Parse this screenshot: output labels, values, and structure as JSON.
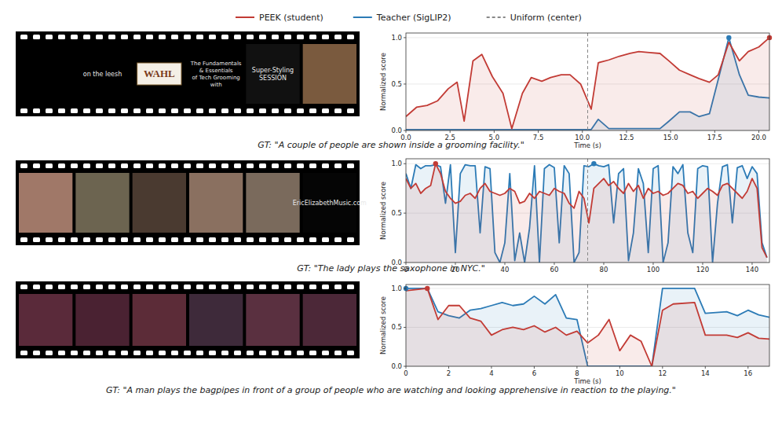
{
  "chart_data": [
    {
      "type": "line",
      "caption": "GT: \"A couple of people are shown inside a grooming facility.\"",
      "x_label": "Time (s)",
      "y_label": "Normalized score",
      "x": [
        0,
        0.6,
        1.2,
        1.8,
        2.4,
        2.9,
        3.3,
        3.8,
        4.3,
        4.9,
        5.5,
        6.0,
        6.6,
        7.1,
        7.7,
        8.2,
        8.8,
        9.3,
        9.9,
        10.5,
        10.9,
        11.5,
        12.1,
        12.7,
        13.2,
        13.8,
        14.4,
        14.9,
        15.5,
        16.1,
        16.6,
        17.2,
        17.7,
        18.3,
        18.9,
        19.4,
        20.0,
        20.6
      ],
      "series": [
        {
          "name": "PEEK (student)",
          "color": "#c23b35",
          "values": [
            0.15,
            0.25,
            0.27,
            0.32,
            0.45,
            0.52,
            0.1,
            0.75,
            0.82,
            0.58,
            0.4,
            0.02,
            0.4,
            0.57,
            0.53,
            0.57,
            0.6,
            0.6,
            0.5,
            0.23,
            0.73,
            0.76,
            0.8,
            0.83,
            0.85,
            0.84,
            0.83,
            0.75,
            0.65,
            0.6,
            0.56,
            0.52,
            0.6,
            0.95,
            0.75,
            0.85,
            0.9,
            1.0
          ]
        },
        {
          "name": "Teacher (SigLIP2)",
          "color": "#2c7bb6",
          "values": [
            0.01,
            0.01,
            0.01,
            0.01,
            0.01,
            0.01,
            0.01,
            0.01,
            0.01,
            0.01,
            0.01,
            0.01,
            0.01,
            0.01,
            0.01,
            0.01,
            0.01,
            0.01,
            0.01,
            0.01,
            0.12,
            0.02,
            0.02,
            0.02,
            0.02,
            0.02,
            0.02,
            0.1,
            0.2,
            0.2,
            0.15,
            0.18,
            0.55,
            1.0,
            0.6,
            0.38,
            0.36,
            0.35
          ]
        }
      ],
      "reference": {
        "name": "Uniform (center)",
        "color": "#888888",
        "line_style": "dashed",
        "x": 10.3
      },
      "xlim": [
        0,
        20.6
      ],
      "xticks": [
        {
          "value": 0,
          "label": "0.0"
        },
        {
          "value": 2.5,
          "label": "2.5"
        },
        {
          "value": 5,
          "label": "5.0"
        },
        {
          "value": 7.5,
          "label": "7.5"
        },
        {
          "value": 10,
          "label": "10.0"
        },
        {
          "value": 12.5,
          "label": "12.5"
        },
        {
          "value": 15,
          "label": "15.0"
        },
        {
          "value": 17.5,
          "label": "17.5"
        },
        {
          "value": 20,
          "label": "20.0"
        }
      ],
      "ylim": [
        0,
        1.05
      ],
      "yticks": [
        {
          "value": 0,
          "label": "0.0"
        },
        {
          "value": 0.5,
          "label": "0.5"
        },
        {
          "value": 1,
          "label": "1.0"
        }
      ],
      "grid": true
    },
    {
      "type": "line",
      "caption": "GT: \"The lady plays the saxophone in NYC.\"",
      "y_label": "Normalized score",
      "x": [
        0,
        2,
        4,
        6,
        8,
        10,
        12,
        14,
        16,
        18,
        20,
        22,
        24,
        26,
        28,
        30,
        32,
        34,
        36,
        38,
        40,
        42,
        44,
        46,
        48,
        50,
        52,
        54,
        56,
        58,
        60,
        62,
        64,
        66,
        68,
        70,
        72,
        74,
        76,
        78,
        80,
        82,
        84,
        86,
        88,
        90,
        92,
        94,
        96,
        98,
        100,
        102,
        104,
        106,
        108,
        110,
        112,
        114,
        116,
        118,
        120,
        122,
        124,
        126,
        128,
        130,
        132,
        134,
        136,
        138,
        140,
        142,
        144,
        146
      ],
      "series": [
        {
          "color": "#c23b35",
          "values": [
            0.85,
            0.75,
            0.8,
            0.7,
            0.75,
            0.78,
            1.0,
            0.9,
            0.72,
            0.65,
            0.6,
            0.62,
            0.68,
            0.7,
            0.65,
            0.75,
            0.8,
            0.72,
            0.7,
            0.68,
            0.7,
            0.75,
            0.72,
            0.6,
            0.62,
            0.7,
            0.65,
            0.72,
            0.7,
            0.68,
            0.75,
            0.72,
            0.7,
            0.6,
            0.55,
            0.72,
            0.65,
            0.4,
            0.75,
            0.8,
            0.85,
            0.78,
            0.82,
            0.75,
            0.7,
            0.8,
            0.72,
            0.78,
            0.65,
            0.75,
            0.7,
            0.72,
            0.68,
            0.7,
            0.75,
            0.8,
            0.78,
            0.7,
            0.72,
            0.65,
            0.7,
            0.75,
            0.72,
            0.68,
            0.78,
            0.8,
            0.75,
            0.7,
            0.65,
            0.72,
            0.85,
            0.75,
            0.15,
            0.05
          ]
        },
        {
          "color": "#2c7bb6",
          "values": [
            0.9,
            0.75,
            0.99,
            0.95,
            0.98,
            0.98,
            0.99,
            0.97,
            0.6,
            0.99,
            0.1,
            0.9,
            0.99,
            0.98,
            0.98,
            0.3,
            0.97,
            0.95,
            0.1,
            0.0,
            0.2,
            0.9,
            0.02,
            0.3,
            0.0,
            0.35,
            0.98,
            0.0,
            0.95,
            0.99,
            0.96,
            0.2,
            0.98,
            0.9,
            0.0,
            0.1,
            0.98,
            0.97,
            1.0,
            0.98,
            0.97,
            0.99,
            0.4,
            0.9,
            0.95,
            0.02,
            0.3,
            0.95,
            0.8,
            0.1,
            0.95,
            0.98,
            0.0,
            0.2,
            0.97,
            0.9,
            0.99,
            0.3,
            0.1,
            0.95,
            0.98,
            0.97,
            0.0,
            0.6,
            0.97,
            0.99,
            0.4,
            0.96,
            0.98,
            0.85,
            0.97,
            0.9,
            0.2,
            0.05
          ]
        }
      ],
      "reference": {
        "color": "#888888",
        "line_style": "dashed",
        "x": 73.5
      },
      "xlim": [
        0,
        147
      ],
      "xticks": [
        0,
        20,
        40,
        60,
        80,
        100,
        120,
        140
      ],
      "ylim": [
        0,
        1.05
      ],
      "yticks": [
        {
          "value": 0,
          "label": "0.0"
        },
        {
          "value": 0.5,
          "label": "0.5"
        },
        {
          "value": 1,
          "label": "1.0"
        }
      ],
      "grid": true
    },
    {
      "type": "line",
      "caption": "GT: \"A man plays the bagpipes in front of a group of people who are watching and looking apprehensive in reaction to the playing.\"",
      "x_label": "Time (s)",
      "y_label": "Normalized score",
      "x": [
        0,
        1,
        1.5,
        2,
        2.5,
        3,
        3.5,
        4,
        4.5,
        5,
        5.5,
        6,
        6.5,
        7,
        7.5,
        8,
        8.5,
        9,
        9.5,
        10,
        10.5,
        11,
        11.5,
        12,
        12.5,
        13.5,
        14,
        15,
        15.5,
        16,
        16.5,
        17
      ],
      "series": [
        {
          "color": "#c23b35",
          "values": [
            0.97,
            1.0,
            0.6,
            0.78,
            0.78,
            0.62,
            0.58,
            0.4,
            0.47,
            0.5,
            0.47,
            0.52,
            0.44,
            0.5,
            0.4,
            0.45,
            0.3,
            0.4,
            0.6,
            0.2,
            0.4,
            0.32,
            0.0,
            0.72,
            0.8,
            0.82,
            0.4,
            0.4,
            0.37,
            0.43,
            0.36,
            0.35
          ]
        },
        {
          "color": "#2c7bb6",
          "values": [
            1.0,
            1.0,
            0.7,
            0.65,
            0.62,
            0.72,
            0.74,
            0.78,
            0.82,
            0.78,
            0.8,
            0.9,
            0.8,
            0.92,
            0.62,
            0.6,
            0.0,
            0.0,
            0.0,
            0.0,
            0.0,
            0.0,
            0.0,
            1.0,
            1.0,
            1.0,
            0.68,
            0.7,
            0.65,
            0.72,
            0.66,
            0.63
          ]
        }
      ],
      "reference": {
        "color": "#888888",
        "line_style": "dashed",
        "x": 8.5
      },
      "xlim": [
        0,
        17
      ],
      "xticks": [
        0,
        2,
        4,
        6,
        8,
        10,
        12,
        14,
        16
      ],
      "ylim": [
        0,
        1.05
      ],
      "yticks": [
        {
          "value": 0,
          "label": "0.0"
        },
        {
          "value": 0.5,
          "label": "0.5"
        },
        {
          "value": 1,
          "label": "1.0"
        }
      ],
      "grid": true
    }
  ],
  "filmstrips": [
    {
      "frames": [
        null,
        [
          "on the leesh"
        ],
        [
          "WAHL"
        ],
        [
          "The Fundamentals",
          "& Essentials",
          "of Tech Grooming",
          "with"
        ],
        [
          "Super-Styling",
          "SESSION"
        ],
        null
      ]
    },
    {
      "frames": [
        null,
        null,
        null,
        null,
        null,
        [
          "EricElizabethMusic.com"
        ]
      ]
    },
    {
      "frames": [
        null,
        null,
        null,
        null,
        null,
        null
      ]
    }
  ]
}
